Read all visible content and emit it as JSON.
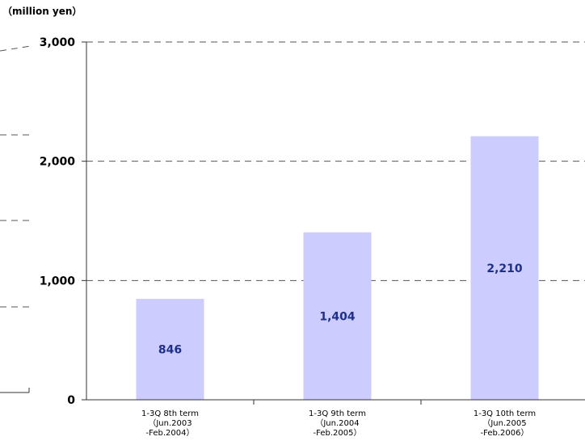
{
  "chart_data": {
    "type": "bar",
    "ylabel": "（million yen）",
    "categories": [
      [
        "1-3Q 8th term",
        "（Jun.2003",
        "-Feb.2004）"
      ],
      [
        "1-3Q 9th term",
        "（Jun.2004",
        "-Feb.2005）"
      ],
      [
        "1-3Q 10th term",
        "（Jun.2005",
        "-Feb.2006）"
      ]
    ],
    "values": [
      846,
      1404,
      2210
    ],
    "data_labels": [
      "846",
      "1,404",
      "2,210"
    ],
    "ylim": [
      0,
      3000
    ],
    "yticks": [
      0,
      1000,
      2000,
      3000
    ],
    "ytick_labels": [
      "0",
      "1,000",
      "2,000",
      "3,000"
    ],
    "grid": true,
    "bar_color": "#ccccff",
    "label_color": "#1f2f8c",
    "grid_color": "#555555"
  }
}
